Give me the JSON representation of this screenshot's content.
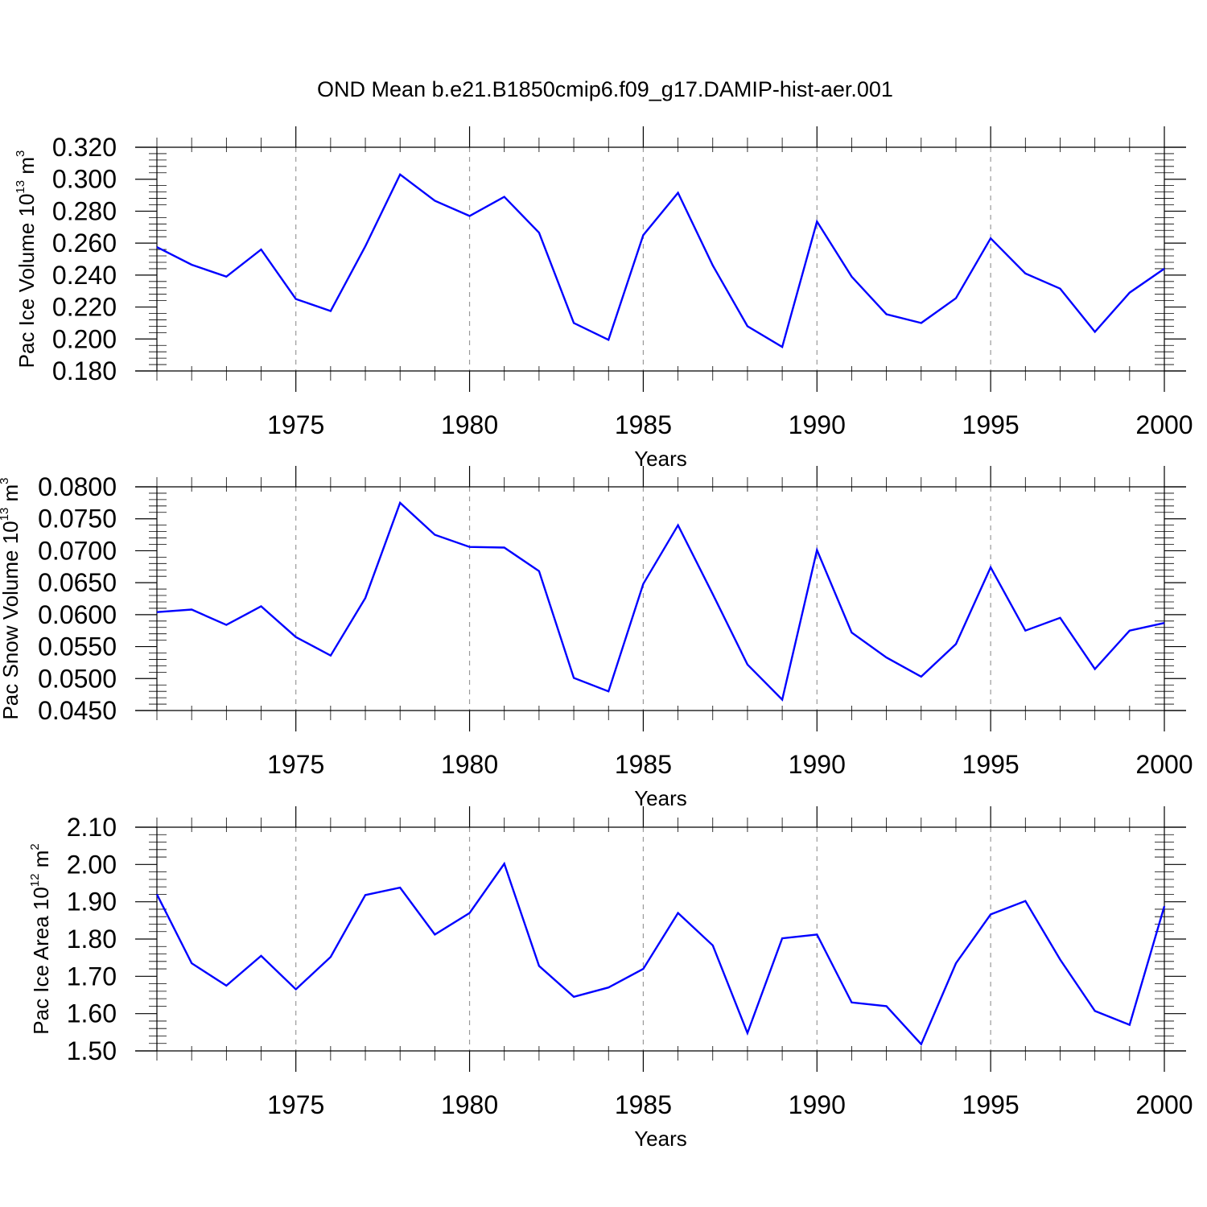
{
  "figure": {
    "title": "OND Mean b.e21.B1850cmip6.f09_g17.DAMIP-hist-aer.001"
  },
  "colors": {
    "series": "#0000ff",
    "grid": "#999999",
    "axes": "#000000"
  },
  "chart_data": [
    {
      "type": "line",
      "id": "ice-volume",
      "ylabel": "Pac Ice Volume 10",
      "ylabel_exp": "13",
      "ylabel_unit": " m",
      "ylabel_unit_exp": "3",
      "xlabel": "Years",
      "xlim": [
        1971,
        2000
      ],
      "ylim": [
        0.18,
        0.32
      ],
      "yticks": [
        0.18,
        0.2,
        0.22,
        0.24,
        0.26,
        0.28,
        0.3,
        0.32
      ],
      "ytick_labels": [
        "0.180",
        "0.200",
        "0.220",
        "0.240",
        "0.260",
        "0.280",
        "0.300",
        "0.320"
      ],
      "xticks": [
        1975,
        1980,
        1985,
        1990,
        1995,
        2000
      ],
      "xtick_labels": [
        "1975",
        "1980",
        "1985",
        "1990",
        "1995",
        "2000"
      ],
      "grid": "vertical dashed at major x ticks",
      "x": [
        1971,
        1972,
        1973,
        1974,
        1975,
        1976,
        1977,
        1978,
        1979,
        1980,
        1981,
        1982,
        1983,
        1984,
        1985,
        1986,
        1987,
        1988,
        1989,
        1990,
        1991,
        1992,
        1993,
        1994,
        1995,
        1996,
        1997,
        1998,
        1999,
        2000
      ],
      "values": [
        0.2575,
        0.2465,
        0.239,
        0.256,
        0.225,
        0.2175,
        0.258,
        0.303,
        0.2865,
        0.277,
        0.289,
        0.2665,
        0.21,
        0.1995,
        0.265,
        0.2915,
        0.246,
        0.208,
        0.195,
        0.2735,
        0.239,
        0.2155,
        0.21,
        0.2255,
        0.263,
        0.241,
        0.2315,
        0.2045,
        0.229,
        0.244
      ]
    },
    {
      "type": "line",
      "id": "snow-volume",
      "ylabel": "Pac Snow Volume 10",
      "ylabel_exp": "13",
      "ylabel_unit": " m",
      "ylabel_unit_exp": "3",
      "xlabel": "Years",
      "xlim": [
        1971,
        2000
      ],
      "ylim": [
        0.045,
        0.08
      ],
      "yticks": [
        0.045,
        0.05,
        0.055,
        0.06,
        0.065,
        0.07,
        0.075,
        0.08
      ],
      "ytick_labels": [
        "0.0450",
        "0.0500",
        "0.0550",
        "0.0600",
        "0.0650",
        "0.0700",
        "0.0750",
        "0.0800"
      ],
      "xticks": [
        1975,
        1980,
        1985,
        1990,
        1995,
        2000
      ],
      "xtick_labels": [
        "1975",
        "1980",
        "1985",
        "1990",
        "1995",
        "2000"
      ],
      "grid": "vertical dashed at major x ticks",
      "x": [
        1971,
        1972,
        1973,
        1974,
        1975,
        1976,
        1977,
        1978,
        1979,
        1980,
        1981,
        1982,
        1983,
        1984,
        1985,
        1986,
        1987,
        1988,
        1989,
        1990,
        1991,
        1992,
        1993,
        1994,
        1995,
        1996,
        1997,
        1998,
        1999,
        2000
      ],
      "values": [
        0.0604,
        0.0608,
        0.0584,
        0.0613,
        0.0565,
        0.0536,
        0.0626,
        0.0775,
        0.0725,
        0.0706,
        0.0705,
        0.0668,
        0.0501,
        0.048,
        0.0648,
        0.074,
        0.0632,
        0.0522,
        0.0467,
        0.0701,
        0.0572,
        0.0533,
        0.0503,
        0.0554,
        0.0674,
        0.0575,
        0.0595,
        0.0515,
        0.0575,
        0.0587
      ]
    },
    {
      "type": "line",
      "id": "ice-area",
      "ylabel": "Pac Ice Area 10",
      "ylabel_exp": "12",
      "ylabel_unit": " m",
      "ylabel_unit_exp": "2",
      "xlabel": "Years",
      "xlim": [
        1971,
        2000
      ],
      "ylim": [
        1.5,
        2.1
      ],
      "yticks": [
        1.5,
        1.6,
        1.7,
        1.8,
        1.9,
        2.0,
        2.1
      ],
      "ytick_labels": [
        "1.50",
        "1.60",
        "1.70",
        "1.80",
        "1.90",
        "2.00",
        "2.10"
      ],
      "xticks": [
        1975,
        1980,
        1985,
        1990,
        1995,
        2000
      ],
      "xtick_labels": [
        "1975",
        "1980",
        "1985",
        "1990",
        "1995",
        "2000"
      ],
      "grid": "vertical dashed at major x ticks",
      "x": [
        1971,
        1972,
        1973,
        1974,
        1975,
        1976,
        1977,
        1978,
        1979,
        1980,
        1981,
        1982,
        1983,
        1984,
        1985,
        1986,
        1987,
        1988,
        1989,
        1990,
        1991,
        1992,
        1993,
        1994,
        1995,
        1996,
        1997,
        1998,
        1999,
        2000
      ],
      "values": [
        1.92,
        1.735,
        1.675,
        1.755,
        1.665,
        1.752,
        1.918,
        1.938,
        1.812,
        1.87,
        2.002,
        1.728,
        1.645,
        1.67,
        1.72,
        1.87,
        1.783,
        1.548,
        1.802,
        1.812,
        1.63,
        1.62,
        1.518,
        1.735,
        1.866,
        1.902,
        1.745,
        1.607,
        1.57,
        1.888
      ]
    }
  ]
}
